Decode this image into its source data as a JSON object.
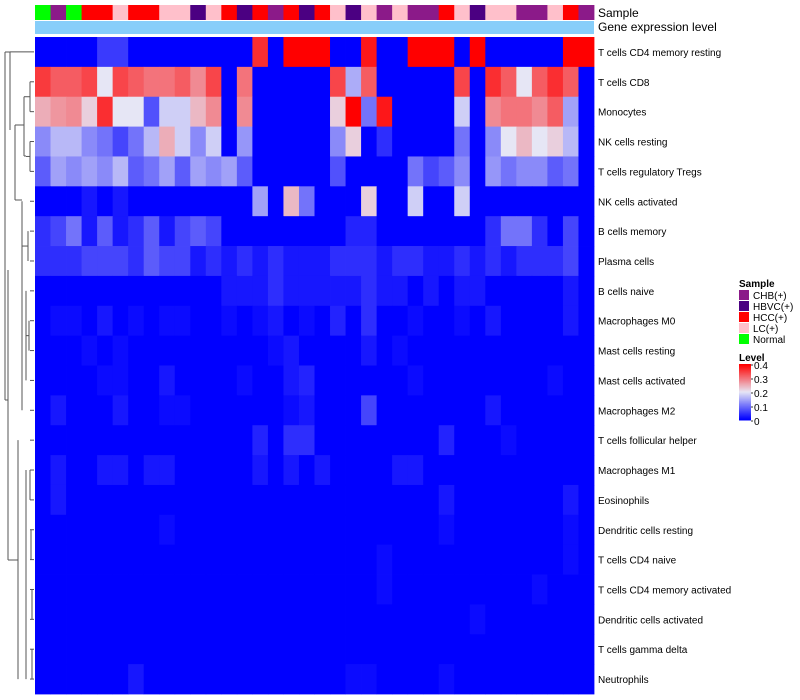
{
  "chart_data": {
    "type": "heatmap",
    "annotation_rows": [
      "Sample",
      "Gene expression level"
    ],
    "rows": [
      "T cells CD4 memory resting",
      "T cells CD8",
      "Monocytes",
      "NK cells resting",
      "T cells regulatory  Tregs",
      "NK cells activated",
      "B cells memory",
      "Plasma cells",
      "B cells naive",
      "Macrophages M0",
      "Mast cells resting",
      "Mast cells activated",
      "Macrophages M2",
      "T cells follicular helper",
      "Macrophages M1",
      "Eosinophils",
      "Dendritic cells resting",
      "T cells CD4 naive",
      "T cells CD4 memory activated",
      "Dendritic cells activated",
      "T cells gamma delta",
      "Neutrophils"
    ],
    "sample_annotation": [
      "Normal",
      "CHB(+)",
      "Normal",
      "HCC(+)",
      "HCC(+)",
      "LC(+)",
      "HCC(+)",
      "HCC(+)",
      "LC(+)",
      "LC(+)",
      "HBVC(+)",
      "LC(+)",
      "HCC(+)",
      "HBVC(+)",
      "HCC(+)",
      "CHB(+)",
      "HCC(+)",
      "HBVC(+)",
      "HCC(+)",
      "LC(+)",
      "HBVC(+)",
      "LC(+)",
      "CHB(+)",
      "LC(+)",
      "CHB(+)",
      "CHB(+)",
      "HCC(+)",
      "LC(+)",
      "HBVC(+)",
      "LC(+)",
      "LC(+)",
      "CHB(+)",
      "CHB(+)",
      "LC(+)",
      "HCC(+)",
      "CHB(+)"
    ],
    "gene_expression_level": "all",
    "values": [
      [
        0.0,
        0.0,
        0.0,
        0.0,
        0.05,
        0.05,
        0.0,
        0.0,
        0.0,
        0.0,
        0.0,
        0.0,
        0.0,
        0.0,
        0.36,
        0.0,
        0.4,
        0.4,
        0.4,
        0.0,
        0.0,
        0.38,
        0.0,
        0.0,
        0.4,
        0.4,
        0.4,
        0.0,
        0.4,
        0.0,
        0.0,
        0.0,
        0.0,
        0.0,
        0.4,
        0.4
      ],
      [
        0.35,
        0.32,
        0.32,
        0.34,
        0.2,
        0.34,
        0.32,
        0.3,
        0.3,
        0.32,
        0.28,
        0.34,
        0.0,
        0.3,
        0.0,
        0.0,
        0.0,
        0.0,
        0.0,
        0.34,
        0.15,
        0.32,
        0.0,
        0.0,
        0.0,
        0.0,
        0.0,
        0.34,
        0.0,
        0.36,
        0.32,
        0.2,
        0.32,
        0.36,
        0.32,
        0.0
      ],
      [
        0.25,
        0.27,
        0.28,
        0.22,
        0.36,
        0.2,
        0.2,
        0.07,
        0.18,
        0.18,
        0.24,
        0.28,
        0.0,
        0.28,
        0.0,
        0.0,
        0.0,
        0.0,
        0.0,
        0.22,
        0.4,
        0.1,
        0.38,
        0.0,
        0.0,
        0.0,
        0.0,
        0.18,
        0.0,
        0.28,
        0.3,
        0.3,
        0.28,
        0.32,
        0.14,
        0.0
      ],
      [
        0.12,
        0.16,
        0.16,
        0.12,
        0.1,
        0.06,
        0.1,
        0.16,
        0.25,
        0.18,
        0.12,
        0.18,
        0.0,
        0.13,
        0.0,
        0.0,
        0.0,
        0.0,
        0.0,
        0.12,
        0.22,
        0.0,
        0.04,
        0.0,
        0.0,
        0.0,
        0.0,
        0.1,
        0.0,
        0.12,
        0.2,
        0.24,
        0.2,
        0.22,
        0.16,
        0.0
      ],
      [
        0.08,
        0.14,
        0.12,
        0.14,
        0.12,
        0.16,
        0.08,
        0.1,
        0.14,
        0.08,
        0.14,
        0.12,
        0.14,
        0.08,
        0.0,
        0.0,
        0.0,
        0.0,
        0.0,
        0.07,
        0.0,
        0.0,
        0.0,
        0.0,
        0.1,
        0.06,
        0.08,
        0.12,
        0.0,
        0.13,
        0.1,
        0.12,
        0.12,
        0.08,
        0.1,
        0.0
      ],
      [
        0.0,
        0.0,
        0.0,
        0.02,
        0.0,
        0.02,
        0.0,
        0.0,
        0.0,
        0.0,
        0.0,
        0.0,
        0.0,
        0.0,
        0.14,
        0.0,
        0.24,
        0.1,
        0.0,
        0.0,
        0.0,
        0.22,
        0.0,
        0.0,
        0.18,
        0.0,
        0.0,
        0.18,
        0.0,
        0.0,
        0.0,
        0.0,
        0.0,
        0.0,
        0.0,
        0.0
      ],
      [
        0.04,
        0.06,
        0.1,
        0.02,
        0.08,
        0.02,
        0.04,
        0.08,
        0.02,
        0.06,
        0.08,
        0.06,
        0.0,
        0.0,
        0.0,
        0.0,
        0.0,
        0.0,
        0.0,
        0.0,
        0.03,
        0.03,
        0.0,
        0.0,
        0.0,
        0.0,
        0.0,
        0.0,
        0.0,
        0.04,
        0.1,
        0.1,
        0.04,
        0.0,
        0.06,
        0.0
      ],
      [
        0.04,
        0.04,
        0.04,
        0.06,
        0.06,
        0.06,
        0.04,
        0.08,
        0.06,
        0.06,
        0.02,
        0.04,
        0.02,
        0.04,
        0.02,
        0.04,
        0.02,
        0.02,
        0.02,
        0.04,
        0.04,
        0.04,
        0.02,
        0.04,
        0.04,
        0.02,
        0.02,
        0.04,
        0.02,
        0.04,
        0.02,
        0.04,
        0.04,
        0.04,
        0.06,
        0.0
      ],
      [
        0.0,
        0.0,
        0.0,
        0.0,
        0.0,
        0.0,
        0.0,
        0.0,
        0.0,
        0.0,
        0.0,
        0.0,
        0.02,
        0.02,
        0.02,
        0.04,
        0.02,
        0.02,
        0.02,
        0.02,
        0.02,
        0.04,
        0.02,
        0.02,
        0.0,
        0.02,
        0.0,
        0.02,
        0.02,
        0.0,
        0.0,
        0.0,
        0.0,
        0.0,
        0.02,
        0.0
      ],
      [
        0.0,
        0.01,
        0.01,
        0.0,
        0.02,
        0.0,
        0.01,
        0.0,
        0.01,
        0.01,
        0.0,
        0.0,
        0.01,
        0.0,
        0.01,
        0.02,
        0.0,
        0.01,
        0.0,
        0.03,
        0.0,
        0.04,
        0.0,
        0.0,
        0.01,
        0.0,
        0.0,
        0.01,
        0.0,
        0.02,
        0.0,
        0.0,
        0.0,
        0.0,
        0.02,
        0.0
      ],
      [
        0.0,
        0.0,
        0.0,
        0.01,
        0.0,
        0.01,
        0.0,
        0.0,
        0.0,
        0.0,
        0.0,
        0.0,
        0.0,
        0.0,
        0.0,
        0.01,
        0.02,
        0.0,
        0.0,
        0.0,
        0.0,
        0.02,
        0.0,
        0.01,
        0.0,
        0.0,
        0.0,
        0.0,
        0.0,
        0.0,
        0.0,
        0.0,
        0.0,
        0.0,
        0.0,
        0.0
      ],
      [
        0.0,
        0.0,
        0.0,
        0.0,
        0.01,
        0.01,
        0.0,
        0.0,
        0.02,
        0.0,
        0.0,
        0.0,
        0.0,
        0.01,
        0.0,
        0.0,
        0.02,
        0.03,
        0.0,
        0.0,
        0.0,
        0.0,
        0.0,
        0.0,
        0.01,
        0.0,
        0.0,
        0.0,
        0.0,
        0.0,
        0.0,
        0.0,
        0.0,
        0.01,
        0.0,
        0.0
      ],
      [
        0.0,
        0.02,
        0.0,
        0.0,
        0.0,
        0.02,
        0.0,
        0.0,
        0.01,
        0.01,
        0.0,
        0.0,
        0.0,
        0.0,
        0.0,
        0.0,
        0.01,
        0.02,
        0.0,
        0.0,
        0.0,
        0.06,
        0.0,
        0.0,
        0.0,
        0.0,
        0.0,
        0.0,
        0.0,
        0.02,
        0.0,
        0.0,
        0.0,
        0.0,
        0.0,
        0.0
      ],
      [
        0.0,
        0.0,
        0.0,
        0.0,
        0.0,
        0.0,
        0.0,
        0.0,
        0.0,
        0.0,
        0.0,
        0.0,
        0.0,
        0.0,
        0.03,
        0.0,
        0.04,
        0.04,
        0.0,
        0.0,
        0.0,
        0.0,
        0.0,
        0.0,
        0.0,
        0.0,
        0.03,
        0.0,
        0.0,
        0.0,
        0.01,
        0.0,
        0.0,
        0.0,
        0.0,
        0.0
      ],
      [
        0.0,
        0.02,
        0.0,
        0.0,
        0.02,
        0.02,
        0.0,
        0.02,
        0.02,
        0.0,
        0.0,
        0.0,
        0.0,
        0.0,
        0.02,
        0.0,
        0.02,
        0.0,
        0.02,
        0.0,
        0.0,
        0.0,
        0.0,
        0.02,
        0.02,
        0.0,
        0.0,
        0.0,
        0.0,
        0.0,
        0.0,
        0.0,
        0.0,
        0.0,
        0.0,
        0.0
      ],
      [
        0.0,
        0.02,
        0.0,
        0.0,
        0.0,
        0.0,
        0.0,
        0.0,
        0.0,
        0.0,
        0.0,
        0.0,
        0.0,
        0.0,
        0.0,
        0.0,
        0.0,
        0.0,
        0.0,
        0.0,
        0.0,
        0.0,
        0.0,
        0.0,
        0.0,
        0.0,
        0.02,
        0.0,
        0.0,
        0.0,
        0.0,
        0.0,
        0.0,
        0.0,
        0.02,
        0.0
      ],
      [
        0.0,
        0.0,
        0.0,
        0.0,
        0.0,
        0.0,
        0.0,
        0.0,
        0.01,
        0.0,
        0.0,
        0.0,
        0.0,
        0.0,
        0.0,
        0.0,
        0.0,
        0.0,
        0.0,
        0.0,
        0.0,
        0.0,
        0.0,
        0.0,
        0.0,
        0.0,
        0.01,
        0.0,
        0.0,
        0.0,
        0.0,
        0.0,
        0.0,
        0.0,
        0.01,
        0.0
      ],
      [
        0.0,
        0.0,
        0.0,
        0.0,
        0.0,
        0.0,
        0.0,
        0.0,
        0.0,
        0.0,
        0.0,
        0.0,
        0.0,
        0.0,
        0.0,
        0.0,
        0.0,
        0.0,
        0.0,
        0.0,
        0.0,
        0.0,
        0.01,
        0.0,
        0.0,
        0.0,
        0.0,
        0.0,
        0.0,
        0.0,
        0.0,
        0.0,
        0.0,
        0.0,
        0.01,
        0.0
      ],
      [
        0.0,
        0.0,
        0.0,
        0.0,
        0.0,
        0.0,
        0.0,
        0.0,
        0.0,
        0.0,
        0.0,
        0.0,
        0.0,
        0.0,
        0.0,
        0.0,
        0.0,
        0.0,
        0.0,
        0.0,
        0.0,
        0.0,
        0.01,
        0.0,
        0.0,
        0.0,
        0.0,
        0.0,
        0.0,
        0.0,
        0.0,
        0.0,
        0.01,
        0.0,
        0.0,
        0.0
      ],
      [
        0.0,
        0.0,
        0.0,
        0.0,
        0.0,
        0.0,
        0.0,
        0.0,
        0.0,
        0.0,
        0.0,
        0.0,
        0.0,
        0.0,
        0.0,
        0.0,
        0.0,
        0.0,
        0.0,
        0.0,
        0.0,
        0.0,
        0.0,
        0.0,
        0.0,
        0.0,
        0.0,
        0.0,
        0.01,
        0.0,
        0.0,
        0.0,
        0.0,
        0.0,
        0.0,
        0.0
      ],
      [
        0.0,
        0.0,
        0.0,
        0.0,
        0.0,
        0.0,
        0.0,
        0.0,
        0.0,
        0.0,
        0.0,
        0.0,
        0.0,
        0.0,
        0.0,
        0.0,
        0.0,
        0.0,
        0.0,
        0.0,
        0.0,
        0.0,
        0.0,
        0.0,
        0.0,
        0.0,
        0.0,
        0.0,
        0.0,
        0.0,
        0.0,
        0.0,
        0.0,
        0.0,
        0.0,
        0.0
      ],
      [
        0.0,
        0.0,
        0.0,
        0.0,
        0.0,
        0.0,
        0.02,
        0.0,
        0.0,
        0.0,
        0.0,
        0.0,
        0.0,
        0.0,
        0.0,
        0.0,
        0.0,
        0.0,
        0.0,
        0.0,
        0.01,
        0.01,
        0.0,
        0.0,
        0.0,
        0.0,
        0.01,
        0.0,
        0.0,
        0.0,
        0.0,
        0.0,
        0.0,
        0.0,
        0.0,
        0.0
      ]
    ],
    "color_scale": {
      "min": 0,
      "max": 0.4,
      "low": "#0000ff",
      "mid": "#e6e6f5",
      "high": "#ff0000"
    },
    "legend_sample": {
      "title": "Sample",
      "entries": [
        {
          "label": "CHB(+)",
          "color": "#8b1a89"
        },
        {
          "label": "HBVC(+)",
          "color": "#4b0082"
        },
        {
          "label": "HCC(+)",
          "color": "#ff0000"
        },
        {
          "label": "LC(+)",
          "color": "#ffc0cb"
        },
        {
          "label": "Normal",
          "color": "#00ff00"
        }
      ]
    },
    "legend_level": {
      "title": "Level",
      "ticks": [
        "0.4",
        "0.3",
        "0.2",
        "0.1",
        "0"
      ]
    },
    "dendrogram": "row clustering tree (left)"
  }
}
